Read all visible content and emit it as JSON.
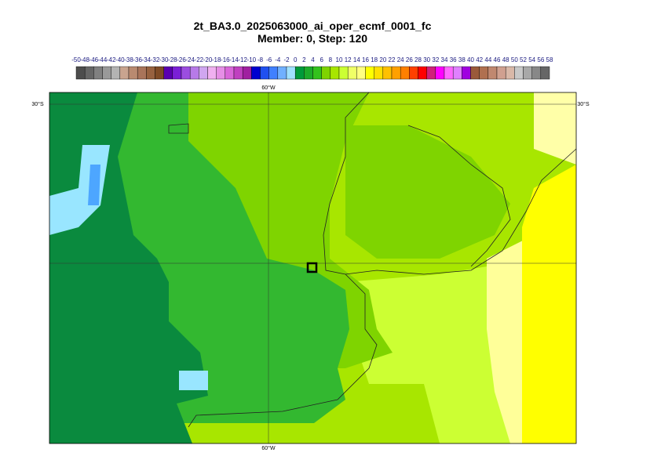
{
  "title": "2t_BA3.0_2025063000_ai_oper_ecmf_0001_fc",
  "subtitle": "Member: 0, Step: 120",
  "colorbar": {
    "levels": [
      -50,
      -48,
      -46,
      -44,
      -42,
      -40,
      -38,
      -36,
      -34,
      -32,
      -30,
      -28,
      -26,
      -24,
      -22,
      -20,
      -18,
      -16,
      -14,
      -12,
      -10,
      -8,
      -6,
      -4,
      -2,
      0,
      2,
      4,
      6,
      8,
      10,
      12,
      14,
      16,
      18,
      20,
      22,
      24,
      26,
      28,
      30,
      32,
      34,
      36,
      38,
      40,
      42,
      44,
      46,
      48,
      50,
      52,
      54,
      56,
      58
    ],
    "colors": [
      "#4d4d4d",
      "#666666",
      "#808080",
      "#999999",
      "#b3b3b3",
      "#c9a48f",
      "#b98a70",
      "#a9745a",
      "#97613f",
      "#7f4a25",
      "#5a00b0",
      "#7a1fd6",
      "#9b4de0",
      "#b77ae8",
      "#d0a6f0",
      "#f0b0f0",
      "#e68ee6",
      "#d966d9",
      "#c040c0",
      "#a020a0",
      "#0000d0",
      "#2050f0",
      "#4080ff",
      "#70b0ff",
      "#a0e0ff",
      "#009a3a",
      "#1cab2a",
      "#33c21d",
      "#7fd400",
      "#a8e600",
      "#ccff33",
      "#f0ff66",
      "#ffff80",
      "#ffff00",
      "#ffe000",
      "#ffc000",
      "#ffa000",
      "#ff8000",
      "#ff4000",
      "#ff0000",
      "#d0207a",
      "#ff00ff",
      "#ff66ff",
      "#e080ff",
      "#a000e0",
      "#9a5a3a",
      "#b07050",
      "#c08870",
      "#d0a090",
      "#d9b8a8",
      "#c8c8c8",
      "#a8a8a8",
      "#888888",
      "#666666"
    ]
  },
  "map": {
    "lon_label_top": "60°W",
    "lon_label_bottom": "60°W",
    "lat_label_left": "30°S",
    "lat_label_right": "30°S"
  }
}
